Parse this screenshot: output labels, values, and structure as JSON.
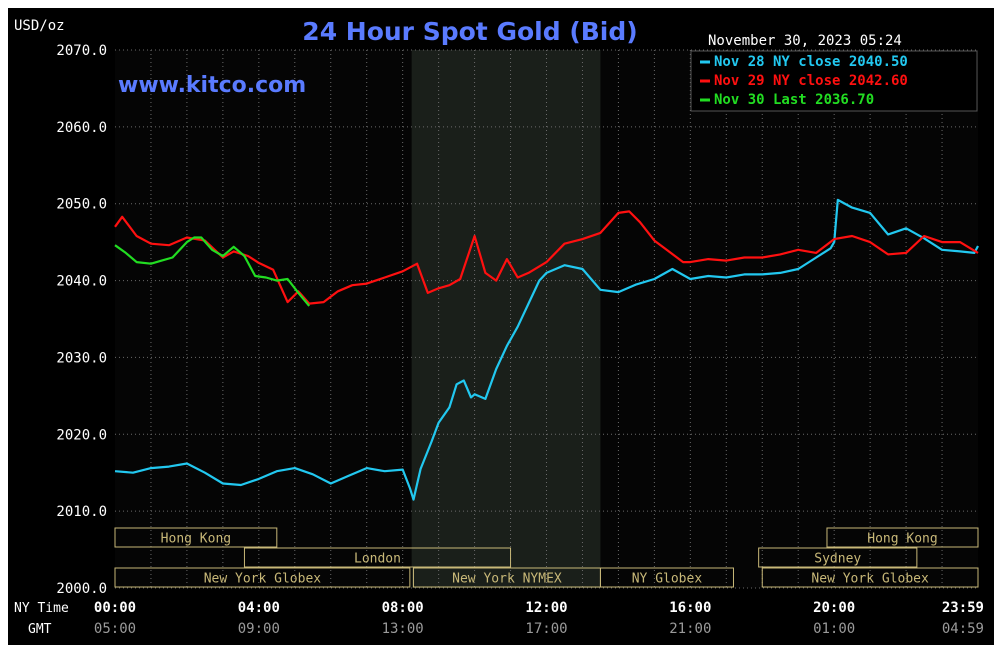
{
  "chart_data": {
    "type": "line",
    "title": "24 Hour Spot Gold (Bid)",
    "ylabel": "USD/oz",
    "website": "www.kitco.com",
    "timestamp": "November 30, 2023 05:24",
    "ylim": [
      2000,
      2070
    ],
    "xlim": [
      0,
      24
    ],
    "grid": true,
    "legend_position": "top-right",
    "y_ticks": [
      {
        "value": 2000,
        "label": "2000.0"
      },
      {
        "value": 2010,
        "label": "2010.0"
      },
      {
        "value": 2020,
        "label": "2020.0"
      },
      {
        "value": 2030,
        "label": "2030.0"
      },
      {
        "value": 2040,
        "label": "2040.0"
      },
      {
        "value": 2050,
        "label": "2050.0"
      },
      {
        "value": 2060,
        "label": "2060.0"
      },
      {
        "value": 2070,
        "label": "2070.0"
      }
    ],
    "x_tick_values": [
      0,
      4,
      8,
      12,
      16,
      20,
      24
    ],
    "x_row_labels": {
      "ny": "NY Time",
      "gmt": "GMT"
    },
    "x_ticks_ny": [
      "00:00",
      "04:00",
      "08:00",
      "12:00",
      "16:00",
      "20:00",
      "23:59"
    ],
    "x_ticks_gmt": [
      "05:00",
      "09:00",
      "13:00",
      "17:00",
      "21:00",
      "01:00",
      "04:59"
    ],
    "shaded_regions": [
      {
        "start": 8.25,
        "end": 13.5
      }
    ],
    "series": [
      {
        "name": "Nov 28 NY close 2040.50",
        "color": "#22c8f0",
        "x": [
          0,
          0.5,
          1,
          1.5,
          2,
          2.5,
          3,
          3.5,
          4,
          4.5,
          5,
          5.5,
          6,
          6.5,
          7,
          7.5,
          8,
          8.2,
          8.3,
          8.5,
          8.8,
          9,
          9.3,
          9.5,
          9.7,
          9.9,
          10,
          10.3,
          10.6,
          10.9,
          11.2,
          11.5,
          11.8,
          12,
          12.5,
          13,
          13.5,
          14,
          14.5,
          15,
          15.5,
          16,
          16.5,
          17,
          17.5,
          18,
          18.5,
          19,
          19.5,
          19.9,
          20,
          20.1,
          20.5,
          21,
          21.5,
          22,
          22.5,
          23,
          23.5,
          23.9,
          24
        ],
        "values": [
          2015.2,
          2015.0,
          2015.6,
          2015.8,
          2016.2,
          2015.0,
          2013.6,
          2013.4,
          2014.2,
          2015.2,
          2015.6,
          2014.8,
          2013.6,
          2014.6,
          2015.6,
          2015.2,
          2015.4,
          2013.0,
          2011.5,
          2015.5,
          2019.0,
          2021.5,
          2023.5,
          2026.5,
          2027.0,
          2024.8,
          2025.2,
          2024.6,
          2028.5,
          2031.5,
          2034.0,
          2037.0,
          2040.0,
          2041.0,
          2042.0,
          2041.5,
          2038.8,
          2038.5,
          2039.5,
          2040.2,
          2041.5,
          2040.2,
          2040.6,
          2040.4,
          2040.8,
          2040.8,
          2041.0,
          2041.5,
          2043.0,
          2044.2,
          2045.0,
          2050.5,
          2049.5,
          2048.8,
          2046.0,
          2046.8,
          2045.5,
          2044.0,
          2043.8,
          2043.6,
          2044.5
        ]
      },
      {
        "name": "Nov 29 NY close 2042.60",
        "color": "#ff1010",
        "x": [
          0,
          0.2,
          0.6,
          1,
          1.5,
          2,
          2.5,
          3,
          3.3,
          3.7,
          4,
          4.4,
          4.8,
          5.1,
          5.4,
          5.8,
          6.2,
          6.6,
          7,
          7.5,
          8,
          8.4,
          8.7,
          9,
          9.3,
          9.6,
          10,
          10.3,
          10.6,
          10.9,
          11.2,
          11.5,
          12,
          12.5,
          13,
          13.5,
          14,
          14.3,
          14.6,
          15,
          15.4,
          15.8,
          16,
          16.5,
          17,
          17.5,
          18,
          18.5,
          19,
          19.5,
          20,
          20.5,
          21,
          21.5,
          22,
          22.5,
          23,
          23.5,
          24
        ],
        "values": [
          2047.0,
          2048.3,
          2045.8,
          2044.8,
          2044.6,
          2045.6,
          2045.2,
          2043.0,
          2043.8,
          2043.2,
          2042.3,
          2041.4,
          2037.2,
          2038.6,
          2037.0,
          2037.2,
          2038.6,
          2039.4,
          2039.6,
          2040.4,
          2041.2,
          2042.2,
          2038.4,
          2039.0,
          2039.4,
          2040.2,
          2045.8,
          2041.0,
          2040.0,
          2042.8,
          2040.4,
          2041.0,
          2042.4,
          2044.8,
          2045.4,
          2046.2,
          2048.8,
          2049.0,
          2047.6,
          2045.2,
          2043.8,
          2042.4,
          2042.4,
          2042.8,
          2042.6,
          2043.0,
          2043.0,
          2043.4,
          2044.0,
          2043.6,
          2045.4,
          2045.8,
          2045.0,
          2043.4,
          2043.6,
          2045.8,
          2045.0,
          2045.0,
          2043.6
        ]
      },
      {
        "name": "Nov 30 Last 2036.70",
        "color": "#22dd22",
        "x": [
          0,
          0.3,
          0.6,
          1,
          1.3,
          1.6,
          2,
          2.2,
          2.4,
          2.7,
          3,
          3.3,
          3.6,
          3.9,
          4.2,
          4.5,
          4.8,
          5.1,
          5.4
        ],
        "values": [
          2044.6,
          2043.6,
          2042.4,
          2042.2,
          2042.6,
          2043.0,
          2045.0,
          2045.6,
          2045.6,
          2044.0,
          2043.2,
          2044.4,
          2043.2,
          2040.6,
          2040.4,
          2040.0,
          2040.2,
          2038.4,
          2036.7
        ]
      }
    ],
    "sessions": [
      {
        "row": 0,
        "label": "Hong Kong",
        "start": 0,
        "end": 4.5
      },
      {
        "row": 0,
        "label": "Hong Kong",
        "start": 19.8,
        "end": 24
      },
      {
        "row": 1,
        "label": "London",
        "start": 3.6,
        "end": 11.0
      },
      {
        "row": 1,
        "label": "Sydney",
        "start": 17.9,
        "end": 22.3
      },
      {
        "row": 2,
        "label": "New York Globex",
        "start": 0,
        "end": 8.2
      },
      {
        "row": 2,
        "label": "New York NYMEX",
        "start": 8.3,
        "end": 13.5
      },
      {
        "row": 2,
        "label": "NY Globex",
        "start": 13.5,
        "end": 17.2
      },
      {
        "row": 2,
        "label": "New York Globex",
        "start": 18.0,
        "end": 24
      }
    ]
  },
  "colors": {
    "background": "#000000",
    "plot": "#050505",
    "shade": "#1a1f1a",
    "grid": "#6a6a6a",
    "title": "#5a7bff",
    "text": "#ffffff",
    "session_box": "#c8b878",
    "dim": "#9a9a9a"
  }
}
